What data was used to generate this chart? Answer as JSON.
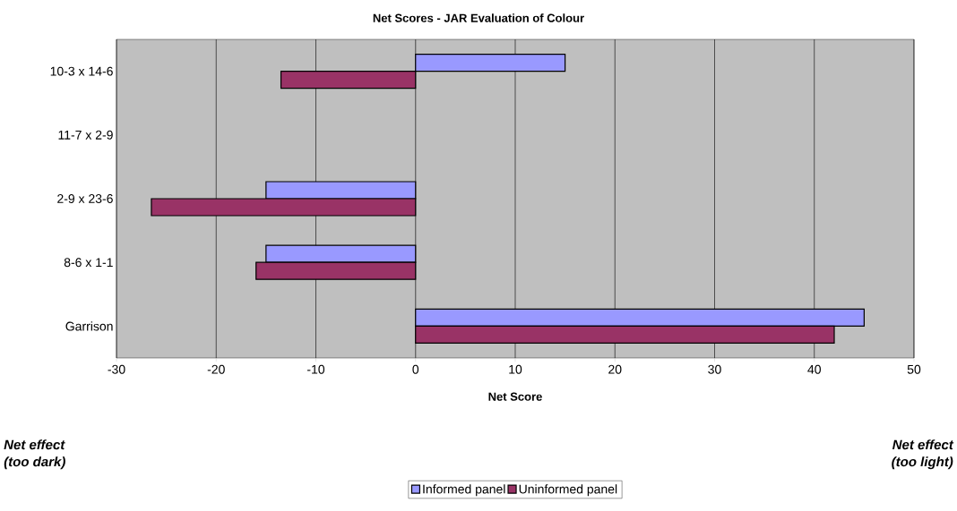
{
  "chart_data": {
    "type": "bar",
    "orientation": "horizontal",
    "title": "Net Scores - JAR Evaluation of Colour",
    "xlabel": "Net Score",
    "categories": [
      "10-3 x 14-6",
      "11-7 x 2-9",
      "2-9 x 23-6",
      "8-6 x 1-1",
      "Garrison"
    ],
    "series": [
      {
        "name": "Informed panel",
        "color": "#9999ff",
        "values": [
          15,
          null,
          -15,
          -15,
          45
        ]
      },
      {
        "name": "Uninformed panel",
        "color": "#993366",
        "values": [
          -13.5,
          null,
          -26.5,
          -16,
          42
        ]
      }
    ],
    "xlim": [
      -30,
      50
    ],
    "xticks": [
      -30,
      -20,
      -10,
      0,
      10,
      20,
      30,
      40,
      50
    ],
    "grid": "x",
    "legend": "bottom",
    "annotations": [
      "Net effect (too dark)",
      "Net effect (too light)"
    ]
  }
}
